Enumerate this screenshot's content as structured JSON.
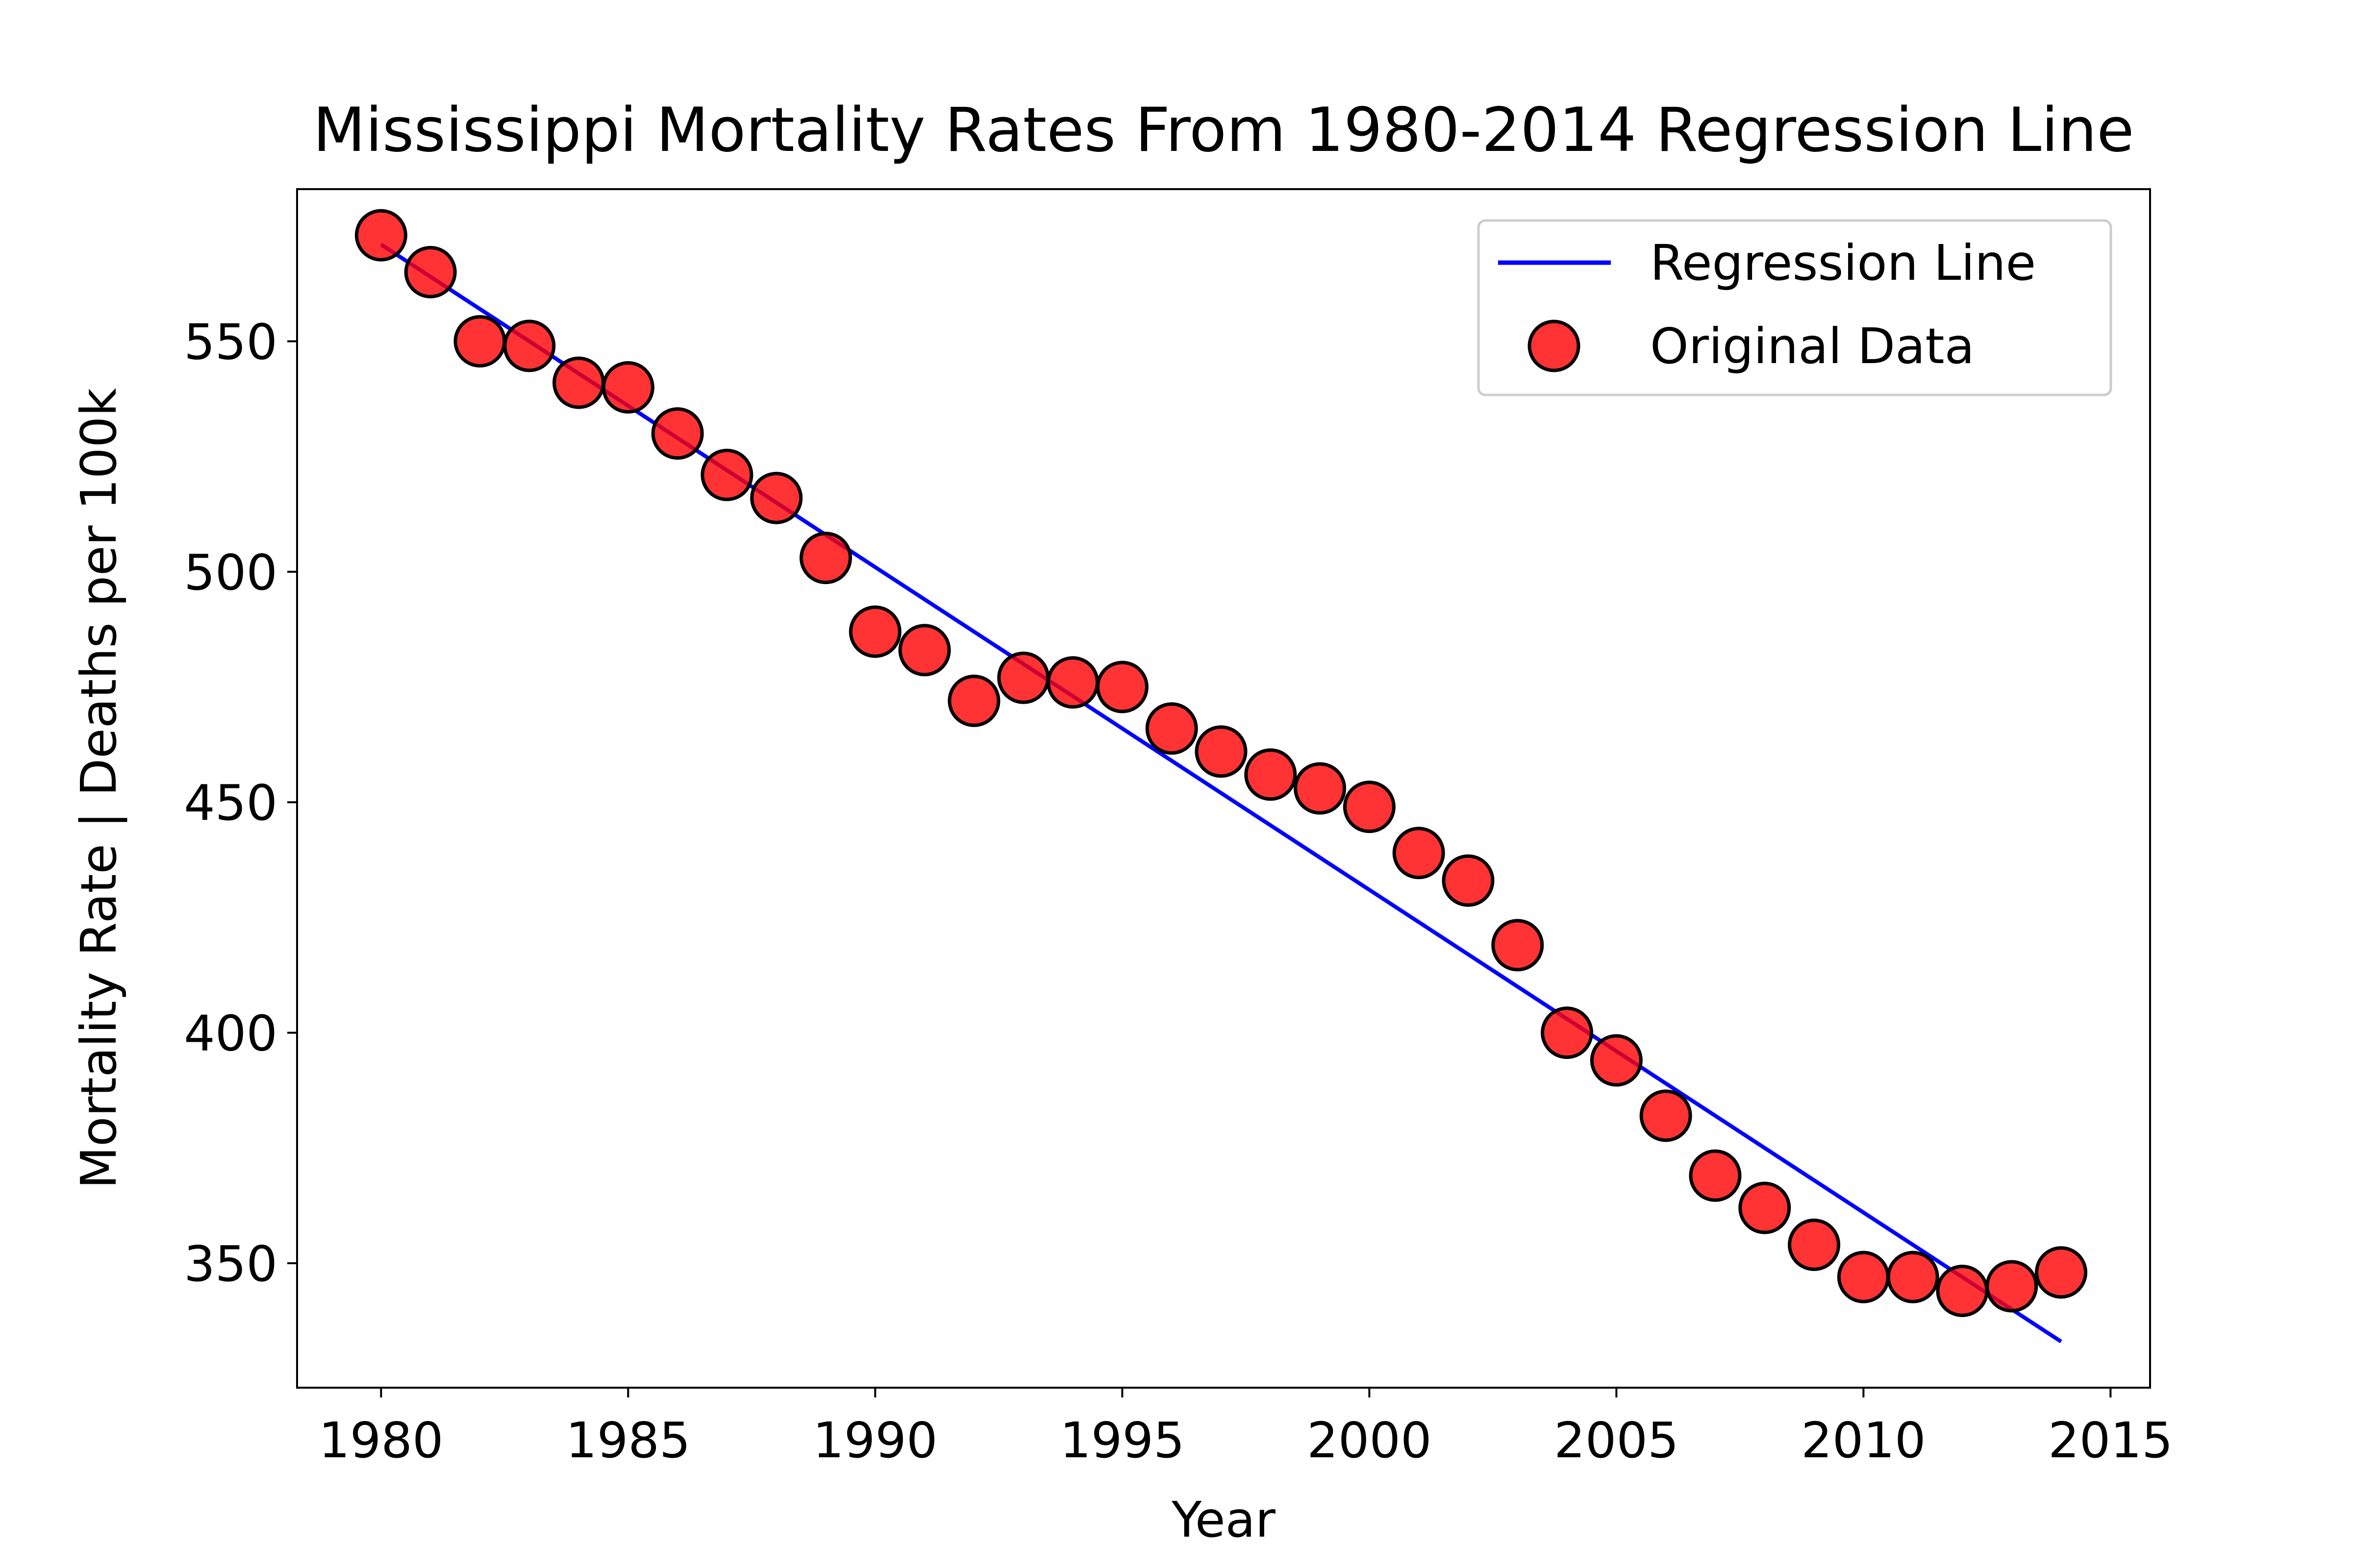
{
  "chart_data": {
    "type": "scatter",
    "title": "Mississippi Mortality Rates From 1980-2014 Regression Line",
    "xlabel": "Year",
    "ylabel": "Mortality Rate | Deaths per 100k",
    "xlim": [
      1978.3,
      2015.8
    ],
    "ylim": [
      323,
      583
    ],
    "x_ticks": [
      1980,
      1985,
      1990,
      1995,
      2000,
      2005,
      2010,
      2015
    ],
    "y_ticks": [
      350,
      400,
      450,
      500,
      550
    ],
    "grid": false,
    "legend_position": "top-right",
    "series": [
      {
        "name": "Regression Line",
        "kind": "line",
        "color": "#0000ff",
        "x": [
          1980,
          2014
        ],
        "y": [
          571,
          333
        ]
      },
      {
        "name": "Original Data",
        "kind": "scatter",
        "color": "#ff0000",
        "edge_color": "#000000",
        "x": [
          1980,
          1981,
          1982,
          1983,
          1984,
          1985,
          1986,
          1987,
          1988,
          1989,
          1990,
          1991,
          1992,
          1993,
          1994,
          1995,
          1996,
          1997,
          1998,
          1999,
          2000,
          2001,
          2002,
          2003,
          2004,
          2005,
          2006,
          2007,
          2008,
          2009,
          2010,
          2011,
          2012,
          2013,
          2014
        ],
        "y": [
          573,
          565,
          550,
          549,
          541,
          540,
          530,
          521,
          516,
          503,
          487,
          483,
          472,
          477,
          476,
          475,
          466,
          461,
          456,
          453,
          449,
          439,
          433,
          419,
          400,
          394,
          382,
          369,
          362,
          354,
          347,
          347,
          344,
          345,
          348
        ]
      }
    ]
  }
}
